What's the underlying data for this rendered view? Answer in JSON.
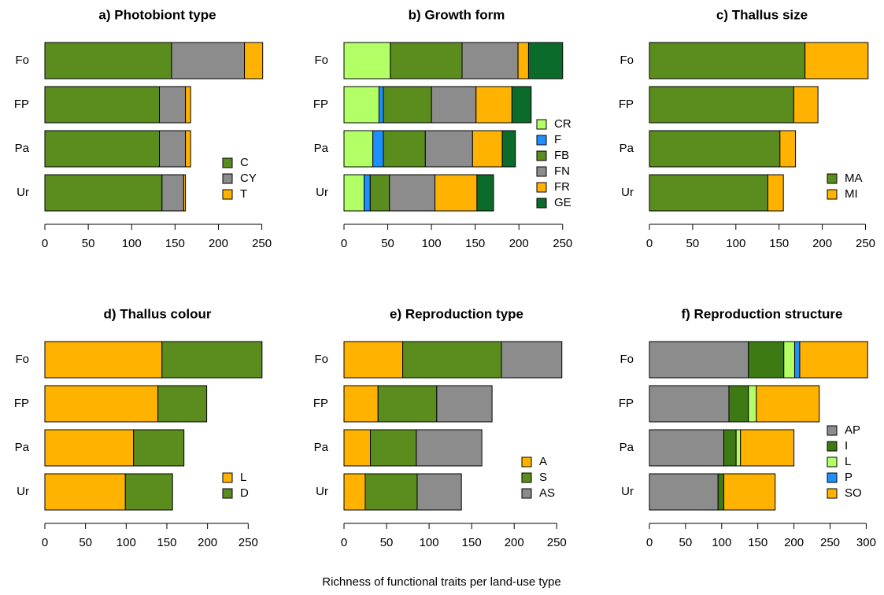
{
  "xlabel": "Richness of functional traits per land-use type",
  "chart_data": [
    {
      "type": "bar",
      "orientation": "horizontal",
      "stacked": true,
      "title": "a) Photobiont type",
      "legend": "lower right",
      "categories": [
        "Fo",
        "FP",
        "Pa",
        "Ur"
      ],
      "xlim": [
        0,
        254
      ],
      "xticks": [
        0,
        50,
        100,
        150,
        200,
        250
      ],
      "series": [
        {
          "name": "C",
          "color": "#5b8c1e",
          "values": [
            146,
            132,
            132,
            135
          ]
        },
        {
          "name": "CY",
          "color": "#8c8c8c",
          "values": [
            84,
            30,
            30,
            25
          ]
        },
        {
          "name": "T",
          "color": "#ffb300",
          "values": [
            21,
            6,
            6,
            2
          ]
        }
      ]
    },
    {
      "type": "bar",
      "orientation": "horizontal",
      "stacked": true,
      "title": "b) Growth form",
      "legend": "right",
      "categories": [
        "Fo",
        "FP",
        "Pa",
        "Ur"
      ],
      "xlim": [
        0,
        252
      ],
      "xticks": [
        0,
        50,
        100,
        150,
        200,
        250
      ],
      "series": [
        {
          "name": "CR",
          "color": "#b3ff66",
          "values": [
            53,
            40,
            33,
            23
          ]
        },
        {
          "name": "F",
          "color": "#1e8fff",
          "values": [
            0,
            5,
            12,
            7
          ]
        },
        {
          "name": "FB",
          "color": "#5b8c1e",
          "values": [
            82,
            55,
            48,
            22
          ]
        },
        {
          "name": "FN",
          "color": "#8c8c8c",
          "values": [
            64,
            51,
            54,
            52
          ]
        },
        {
          "name": "FR",
          "color": "#ffb300",
          "values": [
            12,
            41,
            34,
            48
          ]
        },
        {
          "name": "GE",
          "color": "#0b6b2a",
          "values": [
            39,
            22,
            15,
            19
          ]
        }
      ]
    },
    {
      "type": "bar",
      "orientation": "horizontal",
      "stacked": true,
      "title": "c) Thallus size",
      "legend": "lower right",
      "categories": [
        "Fo",
        "FP",
        "Pa",
        "Ur"
      ],
      "xlim": [
        0,
        255
      ],
      "xticks": [
        0,
        50,
        100,
        150,
        200,
        250
      ],
      "series": [
        {
          "name": "MA",
          "color": "#5b8c1e",
          "values": [
            180,
            167,
            151,
            137
          ]
        },
        {
          "name": "MI",
          "color": "#ffb300",
          "values": [
            73,
            28,
            18,
            18
          ]
        }
      ]
    },
    {
      "type": "bar",
      "orientation": "horizontal",
      "stacked": true,
      "title": "d) Thallus colour",
      "legend": "lower right",
      "categories": [
        "Fo",
        "FP",
        "Pa",
        "Ur"
      ],
      "xlim": [
        0,
        271
      ],
      "xticks": [
        0,
        50,
        100,
        150,
        200,
        250
      ],
      "series": [
        {
          "name": "L",
          "color": "#ffb300",
          "values": [
            144,
            139,
            109,
            99
          ]
        },
        {
          "name": "D",
          "color": "#5b8c1e",
          "values": [
            123,
            60,
            62,
            58
          ]
        }
      ]
    },
    {
      "type": "bar",
      "orientation": "horizontal",
      "stacked": true,
      "title": "e) Reproduction type",
      "legend": "lower right",
      "categories": [
        "Fo",
        "FP",
        "Pa",
        "Ur"
      ],
      "xlim": [
        0,
        259
      ],
      "xticks": [
        0,
        50,
        100,
        150,
        200,
        250
      ],
      "series": [
        {
          "name": "A",
          "color": "#ffb300",
          "values": [
            69,
            40,
            31,
            25
          ]
        },
        {
          "name": "S",
          "color": "#5b8c1e",
          "values": [
            116,
            69,
            54,
            61
          ]
        },
        {
          "name": "AS",
          "color": "#8c8c8c",
          "values": [
            71,
            65,
            77,
            52
          ]
        }
      ]
    },
    {
      "type": "bar",
      "orientation": "horizontal",
      "stacked": true,
      "title": "f) Reproduction structure",
      "legend": "lower right",
      "categories": [
        "Fo",
        "FP",
        "Pa",
        "Ur"
      ],
      "xlim": [
        0,
        305
      ],
      "xticks": [
        0,
        50,
        100,
        150,
        200,
        250,
        300
      ],
      "series": [
        {
          "name": "AP",
          "color": "#8c8c8c",
          "values": [
            137,
            110,
            103,
            95
          ]
        },
        {
          "name": "I",
          "color": "#3d7a14",
          "values": [
            49,
            27,
            17,
            8
          ]
        },
        {
          "name": "L",
          "color": "#b3ff66",
          "values": [
            15,
            11,
            6,
            0
          ]
        },
        {
          "name": "P",
          "color": "#1e8fff",
          "values": [
            7,
            0,
            0,
            0
          ]
        },
        {
          "name": "SO",
          "color": "#ffb300",
          "values": [
            94,
            87,
            74,
            71
          ]
        }
      ]
    }
  ]
}
